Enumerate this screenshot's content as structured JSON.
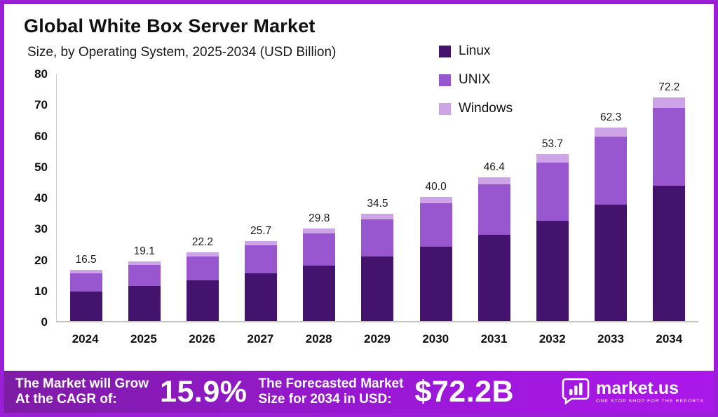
{
  "header": {
    "title": "Global White Box Server Market",
    "subtitle": "Size, by Operating System, 2025-2034 (USD Billion)"
  },
  "legend": [
    {
      "label": "Linux",
      "color": "#44136e"
    },
    {
      "label": "UNIX",
      "color": "#9857cf"
    },
    {
      "label": "Windows",
      "color": "#cda5e6"
    }
  ],
  "chart_data": {
    "type": "bar",
    "stacked": true,
    "title": "Global White Box Server Market",
    "subtitle": "Size, by Operating System, 2025-2034 (USD Billion)",
    "categories": [
      "2024",
      "2025",
      "2026",
      "2027",
      "2028",
      "2029",
      "2030",
      "2031",
      "2032",
      "2033",
      "2034"
    ],
    "series": [
      {
        "name": "Linux",
        "color": "#44136e",
        "values": [
          9.5,
          11.2,
          13.2,
          15.3,
          17.9,
          20.8,
          24.0,
          27.8,
          32.3,
          37.6,
          43.5
        ]
      },
      {
        "name": "UNIX",
        "color": "#9857cf",
        "values": [
          5.9,
          6.8,
          7.6,
          9.0,
          10.4,
          12.0,
          14.0,
          16.3,
          18.8,
          21.8,
          25.3
        ]
      },
      {
        "name": "Windows",
        "color": "#cda5e6",
        "values": [
          1.1,
          1.1,
          1.4,
          1.4,
          1.5,
          1.7,
          2.0,
          2.3,
          2.6,
          2.9,
          3.4
        ]
      }
    ],
    "totals": [
      16.5,
      19.1,
      22.2,
      25.7,
      29.8,
      34.5,
      40.0,
      46.4,
      53.7,
      62.3,
      72.2
    ],
    "ylim": [
      0,
      80
    ],
    "yticks": [
      0,
      10,
      20,
      30,
      40,
      50,
      60,
      70,
      80
    ],
    "ylabel": "",
    "xlabel": "",
    "grid": false,
    "legend_position": "top-right"
  },
  "banner": {
    "growth_line1": "The Market will Grow",
    "growth_line2": "At the CAGR of:",
    "cagr_value": "15.9%",
    "forecast_line1": "The Forecasted Market",
    "forecast_line2": "Size for 2034 in USD:",
    "forecast_value": "$72.2B",
    "brand_name": "market.us",
    "brand_tagline": "ONE STOP SHOP FOR THE REPORTS"
  }
}
